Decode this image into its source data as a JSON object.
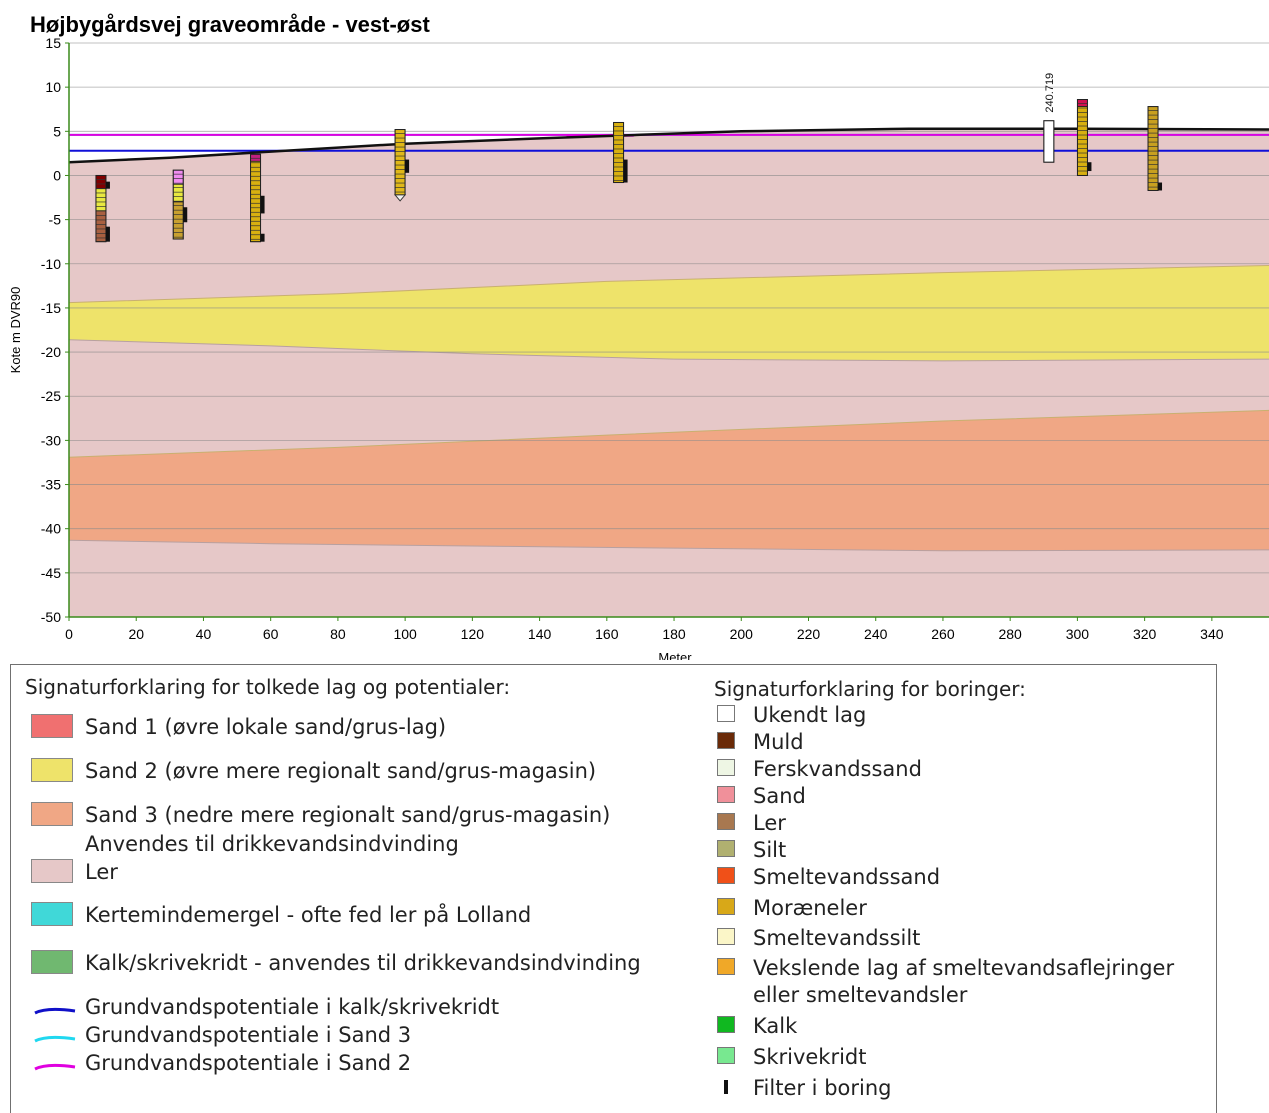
{
  "chart_data": {
    "type": "area",
    "title": "Højbygårdsvej graveområde - vest-øst",
    "xlabel": "Meter",
    "ylabel": "Kote m DVR90",
    "xlim": [
      0,
      357
    ],
    "ylim": [
      -50,
      15
    ],
    "x_ticks": [
      "0",
      "20",
      "40",
      "60",
      "80",
      "100",
      "120",
      "140",
      "160",
      "180",
      "200",
      "220",
      "240",
      "260",
      "280",
      "300",
      "320",
      "340"
    ],
    "y_ticks": [
      "15",
      "10",
      "5",
      "0",
      "-5",
      "-10",
      "-15",
      "-20",
      "-25",
      "-30",
      "-35",
      "-40",
      "-45",
      "-50"
    ],
    "grid": "horizontal",
    "layers": [
      {
        "name": "Ler",
        "color": "#e6c8c8",
        "top": [
          [
            0,
            1.5
          ],
          [
            30,
            2.0
          ],
          [
            60,
            2.7
          ],
          [
            100,
            3.6
          ],
          [
            170,
            4.6
          ],
          [
            200,
            5.0
          ],
          [
            250,
            5.3
          ],
          [
            300,
            5.3
          ],
          [
            357,
            5.2
          ]
        ],
        "bottom": [
          [
            0,
            -50
          ],
          [
            357,
            -50
          ]
        ]
      },
      {
        "name": "Sand 2",
        "color": "#eee36a",
        "top": [
          [
            0,
            -14.4
          ],
          [
            80,
            -13.4
          ],
          [
            160,
            -12.0
          ],
          [
            260,
            -11.0
          ],
          [
            357,
            -10.2
          ]
        ],
        "bottom": [
          [
            0,
            -18.6
          ],
          [
            60,
            -19.3
          ],
          [
            120,
            -20.2
          ],
          [
            180,
            -20.8
          ],
          [
            260,
            -21.0
          ],
          [
            357,
            -20.8
          ]
        ]
      },
      {
        "name": "Sand 3",
        "color": "#f0a785",
        "top": [
          [
            0,
            -31.9
          ],
          [
            80,
            -30.8
          ],
          [
            160,
            -29.4
          ],
          [
            260,
            -27.8
          ],
          [
            357,
            -26.6
          ]
        ],
        "bottom": [
          [
            0,
            -41.3
          ],
          [
            60,
            -41.7
          ],
          [
            130,
            -42.0
          ],
          [
            180,
            -42.2
          ],
          [
            260,
            -42.5
          ],
          [
            357,
            -42.4
          ]
        ]
      }
    ],
    "terrain": [
      [
        0,
        1.5
      ],
      [
        30,
        2.0
      ],
      [
        60,
        2.7
      ],
      [
        100,
        3.6
      ],
      [
        140,
        4.2
      ],
      [
        170,
        4.6
      ],
      [
        200,
        5.0
      ],
      [
        250,
        5.3
      ],
      [
        300,
        5.3
      ],
      [
        357,
        5.2
      ]
    ],
    "potentials": [
      {
        "name": "Grundvandspotentiale i kalk/skrivekridt",
        "color": "#1010d8",
        "level": 2.8
      },
      {
        "name": "Grundvandspotentiale i Sand 3",
        "color": "#20d8f0",
        "level": 4.6
      },
      {
        "name": "Grundvandspotentiale i Sand 2",
        "color": "#e000e0",
        "level": 4.6
      }
    ],
    "boreholes": [
      {
        "x": 9.5,
        "top": 0.0,
        "bottom": -7.5,
        "segments": [
          [
            0.0,
            -1.5,
            "#800000"
          ],
          [
            -1.5,
            -4.0,
            "#e8e840"
          ],
          [
            -4.0,
            -7.5,
            "#a86040"
          ]
        ],
        "filters": [
          [
            -0.7,
            -1.5
          ],
          [
            -5.8,
            -7.5
          ]
        ],
        "label": ""
      },
      {
        "x": 32.5,
        "top": 0.6,
        "bottom": -7.2,
        "segments": [
          [
            0.6,
            -1.0,
            "#f08cf0"
          ],
          [
            -1.0,
            -3.0,
            "#e8e840"
          ],
          [
            -3.0,
            -7.2,
            "#c8a030"
          ]
        ],
        "filters": [
          [
            -3.6,
            -5.3
          ]
        ],
        "label": ""
      },
      {
        "x": 55.5,
        "top": 2.4,
        "bottom": -7.5,
        "segments": [
          [
            2.4,
            1.6,
            "#c02080"
          ],
          [
            1.6,
            -7.5,
            "#d8b010"
          ]
        ],
        "filters": [
          [
            -2.3,
            -4.3
          ],
          [
            -6.6,
            -7.5
          ]
        ],
        "label": ""
      },
      {
        "x": 98.5,
        "top": 5.2,
        "bottom": -2.2,
        "segments": [
          [
            5.2,
            -2.2,
            "#e0b818"
          ]
        ],
        "filters": [
          [
            1.8,
            0.3
          ]
        ],
        "label": ""
      },
      {
        "x": 163.5,
        "top": 6.0,
        "bottom": -0.8,
        "segments": [
          [
            6.0,
            -0.8,
            "#d8b010"
          ]
        ],
        "filters": [
          [
            1.8,
            -0.8
          ]
        ],
        "label": ""
      },
      {
        "x": 291.5,
        "top": 6.2,
        "bottom": 1.5,
        "segments": [
          [
            6.2,
            1.5,
            "#ffffff"
          ]
        ],
        "filters": [],
        "label": "240.719"
      },
      {
        "x": 301.5,
        "top": 8.6,
        "bottom": 0.0,
        "segments": [
          [
            8.6,
            7.8,
            "#d01050"
          ],
          [
            7.8,
            0.0,
            "#d8b010"
          ]
        ],
        "filters": [
          [
            1.5,
            0.5
          ]
        ],
        "label": ""
      },
      {
        "x": 322.5,
        "top": 7.8,
        "bottom": -1.7,
        "segments": [
          [
            7.8,
            -1.7,
            "#c8a020"
          ]
        ],
        "filters": [
          [
            -0.8,
            -1.7
          ]
        ],
        "label": ""
      }
    ]
  },
  "legend": {
    "interp_title": "Signaturforklaring for tolkede lag og potentialer:",
    "interp_items": [
      {
        "label": "Sand 1 (øvre lokale sand/grus-lag)",
        "label2": "",
        "color": "#f07070",
        "kind": "box"
      },
      {
        "label": "Sand 2 (øvre mere regionalt sand/grus-magasin)",
        "label2": "",
        "color": "#eee36a",
        "kind": "box"
      },
      {
        "label": "Sand 3 (nedre mere regionalt sand/grus-magasin)",
        "label2": "Anvendes til drikkevandsindvinding",
        "color": "#f0a785",
        "kind": "box"
      },
      {
        "label": "Ler",
        "label2": "",
        "color": "#e6c8c8",
        "kind": "box"
      },
      {
        "label": "Kertemindemergel - ofte fed ler på Lolland",
        "label2": "",
        "color": "#40d8d8",
        "kind": "box"
      },
      {
        "label": "Kalk/skrivekridt - anvendes til drikkevandsindvinding",
        "label2": "",
        "color": "#70b870",
        "kind": "box"
      },
      {
        "label": "Grundvandspotentiale i kalk/skrivekridt",
        "label2": "",
        "color": "#1010c8",
        "kind": "line"
      },
      {
        "label": "Grundvandspotentiale i Sand 3",
        "label2": "",
        "color": "#20d8f0",
        "kind": "line"
      },
      {
        "label": "Grundvandspotentiale i Sand 2",
        "label2": "",
        "color": "#e000e0",
        "kind": "line"
      }
    ],
    "bore_title": "Signaturforklaring for boringer:",
    "bore_items": [
      {
        "label": "Ukendt lag",
        "label2": "",
        "color": "#ffffff",
        "kind": "box"
      },
      {
        "label": "Muld",
        "label2": "",
        "color": "#6a2a08",
        "kind": "box"
      },
      {
        "label": "Ferskvandssand",
        "label2": "",
        "color": "#eef6e4",
        "kind": "box"
      },
      {
        "label": "Sand",
        "label2": "",
        "color": "#f0909a",
        "kind": "box"
      },
      {
        "label": "Ler",
        "label2": "",
        "color": "#a87850",
        "kind": "box"
      },
      {
        "label": "Silt",
        "label2": "",
        "color": "#b0b070",
        "kind": "box"
      },
      {
        "label": "Smeltevandssand",
        "label2": "",
        "color": "#f05018",
        "kind": "box"
      },
      {
        "label": "Moræneler",
        "label2": "",
        "color": "#d8a818",
        "kind": "box"
      },
      {
        "label": "Smeltevandssilt",
        "label2": "",
        "color": "#fbf6c8",
        "kind": "box"
      },
      {
        "label": "Vekslende lag af smeltevandsaflejringer",
        "label2": "eller smeltevandsler",
        "color": "#f0a828",
        "kind": "box"
      },
      {
        "label": "Kalk",
        "label2": "",
        "color": "#10b820",
        "kind": "box"
      },
      {
        "label": "Skrivekridt",
        "label2": "",
        "color": "#78e890",
        "kind": "box"
      },
      {
        "label": "Filter i boring",
        "label2": "",
        "color": "#111111",
        "kind": "filter"
      }
    ]
  }
}
